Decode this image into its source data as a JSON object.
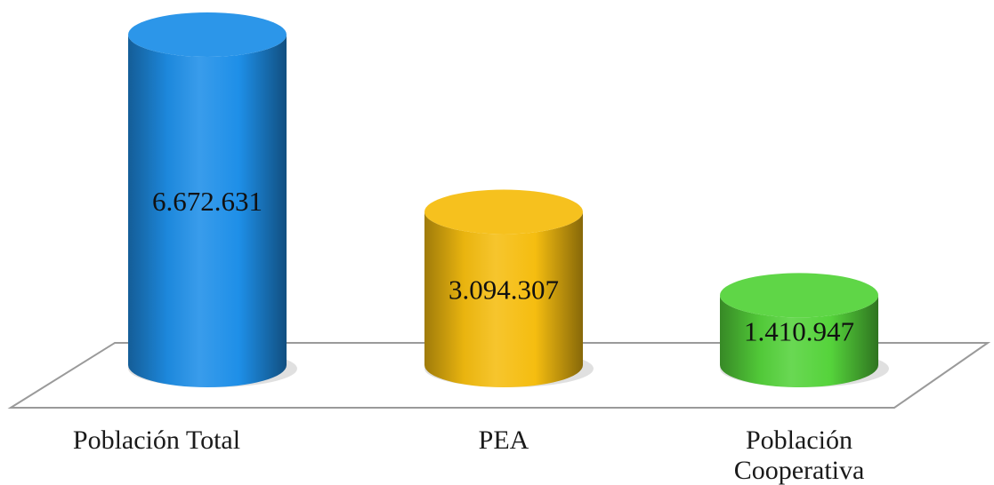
{
  "chart_data": {
    "type": "bar",
    "style": "3d-cylinder",
    "categories": [
      [
        "Población Total"
      ],
      [
        "PEA"
      ],
      [
        "Población",
        "Cooperativa"
      ]
    ],
    "values": [
      6672631,
      3094307,
      1410947
    ],
    "data_labels": [
      "6.672.631",
      "3.094.307",
      "1.410.947"
    ],
    "colors": [
      "#1E8FE8",
      "#F5BD10",
      "#55D33B"
    ],
    "ylim": [
      0,
      6672631
    ],
    "grid": false,
    "legend": "none"
  }
}
